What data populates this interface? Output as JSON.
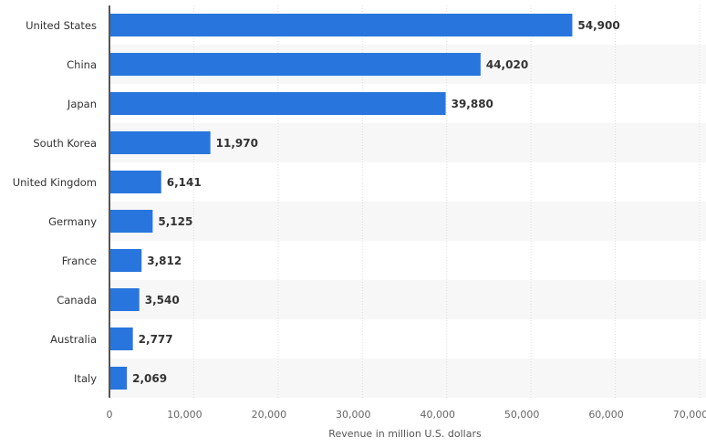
{
  "chart_data": {
    "type": "bar",
    "orientation": "horizontal",
    "categories": [
      "United States",
      "China",
      "Japan",
      "South Korea",
      "United Kingdom",
      "Germany",
      "France",
      "Canada",
      "Australia",
      "Italy"
    ],
    "values": [
      54900,
      44020,
      39880,
      11970,
      6141,
      5125,
      3812,
      3540,
      2777,
      2069
    ],
    "value_labels": [
      "54,900",
      "44,020",
      "39,880",
      "11,970",
      "6,141",
      "5,125",
      "3,812",
      "3,540",
      "2,777",
      "2,069"
    ],
    "title": "",
    "xlabel": "Revenue in million U.S. dollars",
    "ylabel": "",
    "xlim": [
      0,
      70000
    ],
    "xticks": [
      0,
      10000,
      20000,
      30000,
      40000,
      50000,
      60000,
      70000
    ],
    "xtick_labels": [
      "0",
      "10,000",
      "20,000",
      "30,000",
      "40,000",
      "50,000",
      "60,000",
      "70,000"
    ],
    "grid": true,
    "bar_color": "#2876dd",
    "stripe_color": "#f7f7f7"
  }
}
